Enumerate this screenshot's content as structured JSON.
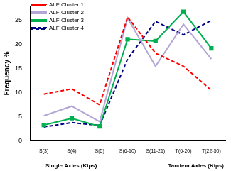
{
  "chart_data": {
    "type": "line",
    "ylabel": "Frequency %",
    "xlabel": [
      "Single Axles (Kips)",
      "Tandem Axles (Kips)"
    ],
    "categories": [
      "S(3)",
      "S(4)",
      "S(5)",
      "S(6-10)",
      "S(11-21)",
      "T(6-20)",
      "T(22-50)"
    ],
    "series": [
      {
        "name": "ALF Cluster 1",
        "color": "#ff0000",
        "line_style": "dashed",
        "marker": "none",
        "values": [
          9.7,
          10.8,
          7.5,
          25.7,
          18.2,
          15.5,
          10.5
        ]
      },
      {
        "name": "ALF Cluster 2",
        "color": "#b4a7d6",
        "line_style": "solid",
        "marker": "none",
        "values": [
          5.2,
          7.2,
          4.0,
          25.5,
          15.5,
          24.2,
          17.0
        ]
      },
      {
        "name": "ALF Cluster 3",
        "color": "#00b050",
        "line_style": "solid",
        "marker": "square",
        "values": [
          3.3,
          4.7,
          3.0,
          21.1,
          20.7,
          26.8,
          19.2
        ]
      },
      {
        "name": "ALF Cluster 4",
        "color": "#000080",
        "line_style": "dashed",
        "marker": "none",
        "values": [
          2.9,
          3.8,
          3.2,
          17.0,
          24.8,
          22.0,
          25.0
        ]
      }
    ],
    "ylim": [
      0,
      28
    ],
    "yticks": [
      0,
      5,
      10,
      15,
      20,
      25
    ],
    "grid": false,
    "legend": "top-left"
  }
}
